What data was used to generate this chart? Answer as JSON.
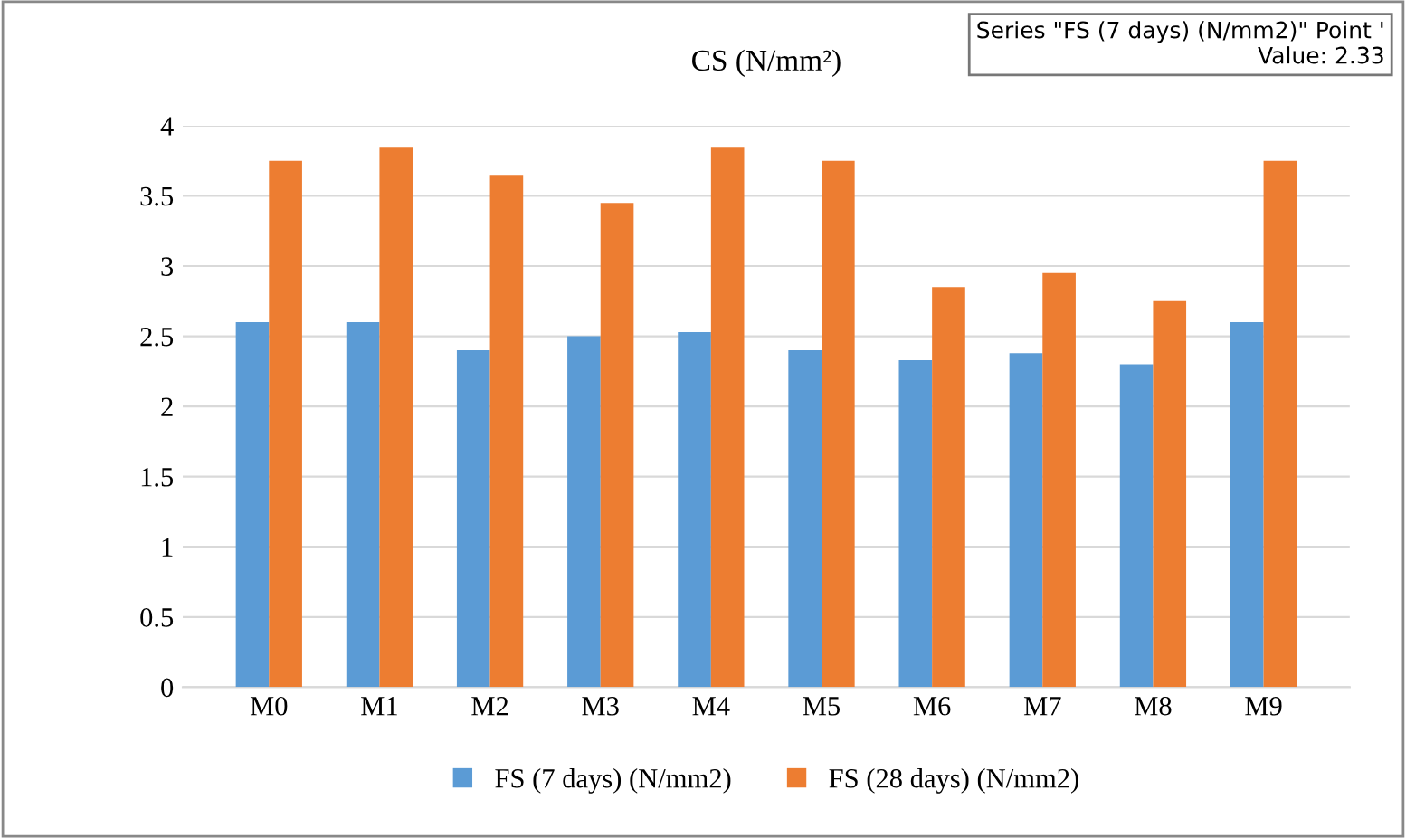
{
  "chart_data": {
    "type": "bar",
    "title": "CS (N/mm²)",
    "categories": [
      "M0",
      "M1",
      "M2",
      "M3",
      "M4",
      "M5",
      "M6",
      "M7",
      "M8",
      "M9"
    ],
    "series": [
      {
        "name": "FS (7 days) (N/mm2)",
        "color": "#5b9bd5",
        "values": [
          2.6,
          2.6,
          2.4,
          2.5,
          2.53,
          2.4,
          2.33,
          2.38,
          2.3,
          2.6
        ]
      },
      {
        "name": "FS (28 days) (N/mm2)",
        "color": "#ed7d31",
        "values": [
          3.75,
          3.85,
          3.65,
          3.45,
          3.85,
          3.75,
          2.85,
          2.95,
          2.75,
          3.75
        ]
      }
    ],
    "ylim": [
      0,
      4
    ],
    "yticks": [
      0,
      0.5,
      1,
      1.5,
      2,
      2.5,
      3,
      3.5,
      4
    ],
    "grid": "y",
    "legend": "bottom",
    "annotations": [
      "Series \"FS (7 days) (N/mm2)\" Point '",
      "Value: 2.33"
    ]
  }
}
